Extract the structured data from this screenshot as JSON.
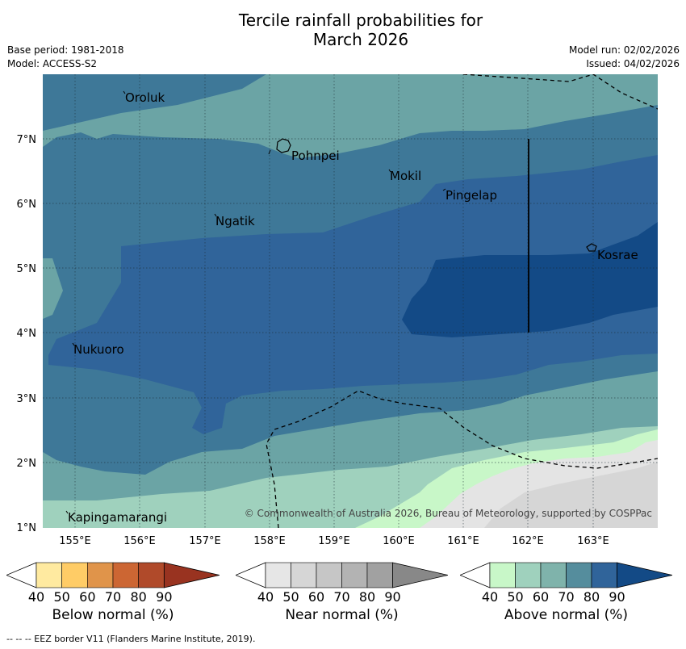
{
  "title": {
    "line1": "Tercile rainfall probabilities for",
    "line2": "March 2026"
  },
  "meta": {
    "base_period": "Base period: 1981-2018",
    "model": "Model: ACCESS-S2",
    "model_run": "Model run: 02/02/2026",
    "issued": "Issued: 04/02/2026"
  },
  "map": {
    "x_ticks": [
      "155°E",
      "156°E",
      "157°E",
      "158°E",
      "159°E",
      "160°E",
      "161°E",
      "162°E",
      "163°E"
    ],
    "y_ticks": [
      "1°N",
      "2°N",
      "3°N",
      "4°N",
      "5°N",
      "6°N",
      "7°N"
    ],
    "places": [
      "Oroluk",
      "Pohnpei",
      "Mokil",
      "Pingelap",
      "Ngatik",
      "Kosrae",
      "Nukuoro",
      "Kapingamarangi"
    ],
    "copyright": "© Commonwealth of Australia 2026, Bureau of Meteorology, supported by COSPPac",
    "colors": {
      "above_60": "#9fd1bd",
      "above_70": "#6ba4a5",
      "above_80": "#3e7898",
      "above_90": "#30649a",
      "above_max": "#134a86",
      "near_40": "#e4e4e4",
      "near_50": "#d6d6d6",
      "above_40": "#c8f7c8"
    }
  },
  "colorbars": [
    {
      "label": "Below normal (%)",
      "ticks": [
        "40",
        "50",
        "60",
        "70",
        "80",
        "90"
      ],
      "colors": [
        "#ffffff",
        "#ffeaa0",
        "#ffcc66",
        "#e0944a",
        "#cc6633",
        "#b04a2a",
        "#993320"
      ]
    },
    {
      "label": "Near normal (%)",
      "ticks": [
        "40",
        "50",
        "60",
        "70",
        "80",
        "90"
      ],
      "colors": [
        "#ffffff",
        "#e6e6e6",
        "#d6d6d6",
        "#c6c6c6",
        "#b3b3b3",
        "#a1a1a1",
        "#888888"
      ]
    },
    {
      "label": "Above normal (%)",
      "ticks": [
        "40",
        "50",
        "60",
        "70",
        "80",
        "90"
      ],
      "colors": [
        "#ffffff",
        "#c8f7c8",
        "#9fd1bd",
        "#7fb3ab",
        "#558d9d",
        "#30649a",
        "#134a86"
      ]
    }
  ],
  "footer": "--  --  -- EEZ border V11 (Flanders Marine Institute, 2019)."
}
